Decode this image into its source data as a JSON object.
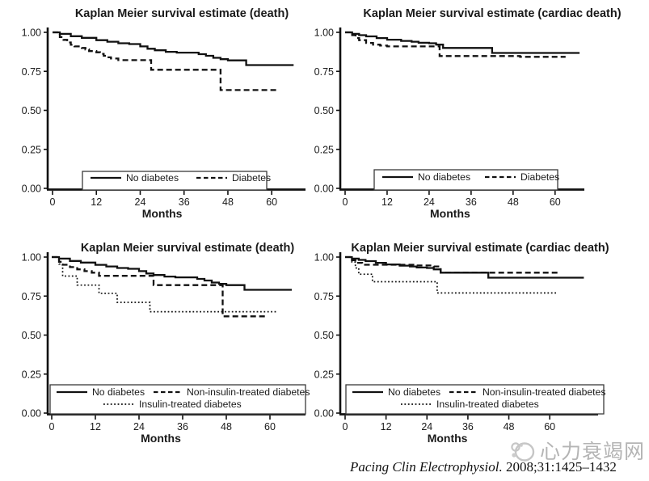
{
  "figure": {
    "background": "#ffffff",
    "curve_color": "#111111",
    "text_color": "#1a1a1a",
    "watermark_color": "#b4b4b4"
  },
  "citation": {
    "journal": "Pacing Clin Electrophysiol.",
    "ref": " 2008;31:1425–1432"
  },
  "watermark": {
    "text": "心力衰竭网",
    "logo": "heart-failure-network-logo"
  },
  "chart_data": [
    {
      "type": "line",
      "subtype": "kaplan-meier-step",
      "panel": "top-left",
      "title": "Kaplan Meier survival estimate (death)",
      "xlabel": "Months",
      "ylabel": "",
      "xlim": [
        0,
        70
      ],
      "ylim": [
        0.0,
        1.0
      ],
      "x_ticks": [
        0,
        12,
        24,
        36,
        48,
        60
      ],
      "y_ticks": [
        {
          "v": 0.0,
          "label": "0.00"
        },
        {
          "v": 0.25,
          "label": "0.25"
        },
        {
          "v": 0.5,
          "label": "0.50"
        },
        {
          "v": 0.75,
          "label": "0.75"
        },
        {
          "v": 1.0,
          "label": "1.00"
        }
      ],
      "grid": false,
      "legend_position": "bottom-inside",
      "series": [
        {
          "name": "No diabetes",
          "style": "solid",
          "points": [
            [
              0,
              1.0
            ],
            [
              2,
              0.99
            ],
            [
              5,
              0.975
            ],
            [
              8,
              0.965
            ],
            [
              12,
              0.95
            ],
            [
              15,
              0.94
            ],
            [
              18,
              0.93
            ],
            [
              21,
              0.925
            ],
            [
              24,
              0.91
            ],
            [
              26,
              0.895
            ],
            [
              28,
              0.885
            ],
            [
              31,
              0.875
            ],
            [
              34,
              0.87
            ],
            [
              40,
              0.86
            ],
            [
              42,
              0.85
            ],
            [
              44,
              0.837
            ],
            [
              46,
              0.828
            ],
            [
              48,
              0.82
            ],
            [
              53,
              0.79
            ],
            [
              66,
              0.79
            ]
          ]
        },
        {
          "name": "Diabetes",
          "style": "dashed",
          "points": [
            [
              0,
              1.0
            ],
            [
              2,
              0.97
            ],
            [
              3,
              0.952
            ],
            [
              4,
              0.935
            ],
            [
              5,
              0.92
            ],
            [
              6,
              0.91
            ],
            [
              8,
              0.9
            ],
            [
              9,
              0.89
            ],
            [
              10,
              0.88
            ],
            [
              12,
              0.872
            ],
            [
              13,
              0.862
            ],
            [
              14,
              0.85
            ],
            [
              15,
              0.84
            ],
            [
              16,
              0.832
            ],
            [
              18,
              0.822
            ],
            [
              27,
              0.76
            ],
            [
              46,
              0.63
            ],
            [
              62,
              0.63
            ]
          ]
        }
      ]
    },
    {
      "type": "line",
      "subtype": "kaplan-meier-step",
      "panel": "top-right",
      "title": "Kaplan Meier survival estimate (cardiac death)",
      "xlabel": "Months",
      "ylabel": "",
      "xlim": [
        0,
        70
      ],
      "ylim": [
        0.0,
        1.0
      ],
      "x_ticks": [
        0,
        12,
        24,
        36,
        48,
        60
      ],
      "y_ticks": [
        {
          "v": 0.0,
          "label": "0.00"
        },
        {
          "v": 0.25,
          "label": "0.25"
        },
        {
          "v": 0.5,
          "label": "0.50"
        },
        {
          "v": 0.75,
          "label": "0.75"
        },
        {
          "v": 1.0,
          "label": "1.00"
        }
      ],
      "grid": false,
      "legend_position": "bottom-inside",
      "series": [
        {
          "name": "No diabetes",
          "style": "solid",
          "points": [
            [
              0,
              1.0
            ],
            [
              2,
              0.99
            ],
            [
              4,
              0.982
            ],
            [
              6,
              0.974
            ],
            [
              9,
              0.963
            ],
            [
              12,
              0.953
            ],
            [
              16,
              0.945
            ],
            [
              19,
              0.94
            ],
            [
              21,
              0.933
            ],
            [
              24,
              0.93
            ],
            [
              26,
              0.921
            ],
            [
              28,
              0.9
            ],
            [
              42,
              0.868
            ],
            [
              67,
              0.868
            ]
          ]
        },
        {
          "name": "Diabetes",
          "style": "dashed",
          "points": [
            [
              0,
              1.0
            ],
            [
              2,
              0.982
            ],
            [
              3,
              0.963
            ],
            [
              4,
              0.95
            ],
            [
              6,
              0.932
            ],
            [
              8,
              0.921
            ],
            [
              10,
              0.915
            ],
            [
              12,
              0.91
            ],
            [
              27,
              0.848
            ],
            [
              50,
              0.843
            ],
            [
              63,
              0.843
            ]
          ]
        }
      ]
    },
    {
      "type": "line",
      "subtype": "kaplan-meier-step",
      "panel": "bottom-left",
      "title": "Kaplan Meier survival estimate (death)",
      "xlabel": "Months",
      "ylabel": "",
      "xlim": [
        0,
        70
      ],
      "ylim": [
        0.0,
        1.0
      ],
      "x_ticks": [
        0,
        12,
        24,
        36,
        48,
        60
      ],
      "y_ticks": [
        {
          "v": 0.0,
          "label": "0.00"
        },
        {
          "v": 0.25,
          "label": "0.25"
        },
        {
          "v": 0.5,
          "label": "0.50"
        },
        {
          "v": 0.75,
          "label": "0.75"
        },
        {
          "v": 1.0,
          "label": "1.00"
        }
      ],
      "grid": false,
      "legend_position": "bottom-inside",
      "series": [
        {
          "name": "No diabetes",
          "style": "solid",
          "points": [
            [
              0,
              1.0
            ],
            [
              2,
              0.99
            ],
            [
              5,
              0.975
            ],
            [
              8,
              0.965
            ],
            [
              12,
              0.95
            ],
            [
              15,
              0.94
            ],
            [
              18,
              0.93
            ],
            [
              21,
              0.925
            ],
            [
              24,
              0.91
            ],
            [
              26,
              0.895
            ],
            [
              28,
              0.885
            ],
            [
              31,
              0.875
            ],
            [
              34,
              0.87
            ],
            [
              40,
              0.86
            ],
            [
              42,
              0.85
            ],
            [
              44,
              0.837
            ],
            [
              46,
              0.828
            ],
            [
              48,
              0.82
            ],
            [
              53,
              0.79
            ],
            [
              66,
              0.79
            ]
          ]
        },
        {
          "name": "Non-insulin-treated diabetes",
          "style": "dashed",
          "points": [
            [
              0,
              1.0
            ],
            [
              2,
              0.97
            ],
            [
              3,
              0.951
            ],
            [
              5,
              0.936
            ],
            [
              7,
              0.921
            ],
            [
              9,
              0.91
            ],
            [
              11,
              0.9
            ],
            [
              13,
              0.88
            ],
            [
              28,
              0.82
            ],
            [
              47,
              0.62
            ],
            [
              59,
              0.62
            ]
          ]
        },
        {
          "name": "Insulin-treated diabetes",
          "style": "dotted",
          "points": [
            [
              0,
              1.0
            ],
            [
              2,
              0.955
            ],
            [
              3,
              0.878
            ],
            [
              7,
              0.82
            ],
            [
              13,
              0.768
            ],
            [
              18,
              0.71
            ],
            [
              27,
              0.65
            ],
            [
              62,
              0.65
            ]
          ]
        }
      ]
    },
    {
      "type": "line",
      "subtype": "kaplan-meier-step",
      "panel": "bottom-right",
      "title": "Kaplan Meier survival estimate (cardiac death)",
      "xlabel": "Months",
      "ylabel": "",
      "xlim": [
        0,
        70
      ],
      "ylim": [
        0.0,
        1.0
      ],
      "x_ticks": [
        0,
        12,
        24,
        36,
        48,
        60
      ],
      "y_ticks": [
        {
          "v": 0.0,
          "label": "0.00"
        },
        {
          "v": 0.25,
          "label": "0.25"
        },
        {
          "v": 0.5,
          "label": "0.50"
        },
        {
          "v": 0.75,
          "label": "0.75"
        },
        {
          "v": 1.0,
          "label": "1.00"
        }
      ],
      "grid": false,
      "legend_position": "bottom-inside",
      "series": [
        {
          "name": "No diabetes",
          "style": "solid",
          "points": [
            [
              0,
              1.0
            ],
            [
              2,
              0.99
            ],
            [
              4,
              0.982
            ],
            [
              6,
              0.974
            ],
            [
              9,
              0.963
            ],
            [
              12,
              0.953
            ],
            [
              16,
              0.945
            ],
            [
              19,
              0.94
            ],
            [
              21,
              0.933
            ],
            [
              24,
              0.93
            ],
            [
              26,
              0.921
            ],
            [
              28,
              0.9
            ],
            [
              42,
              0.868
            ],
            [
              70,
              0.868
            ]
          ]
        },
        {
          "name": "Non-insulin-treated diabetes",
          "style": "dashed",
          "points": [
            [
              0,
              1.0
            ],
            [
              2,
              0.98
            ],
            [
              3,
              0.963
            ],
            [
              5,
              0.951
            ],
            [
              20,
              0.946
            ],
            [
              26,
              0.94
            ],
            [
              28,
              0.9
            ],
            [
              63,
              0.9
            ]
          ]
        },
        {
          "name": "Insulin-treated diabetes",
          "style": "dotted",
          "points": [
            [
              0,
              1.0
            ],
            [
              2,
              0.968
            ],
            [
              3,
              0.93
            ],
            [
              4,
              0.89
            ],
            [
              8,
              0.842
            ],
            [
              27,
              0.77
            ],
            [
              62,
              0.77
            ]
          ]
        }
      ]
    }
  ]
}
